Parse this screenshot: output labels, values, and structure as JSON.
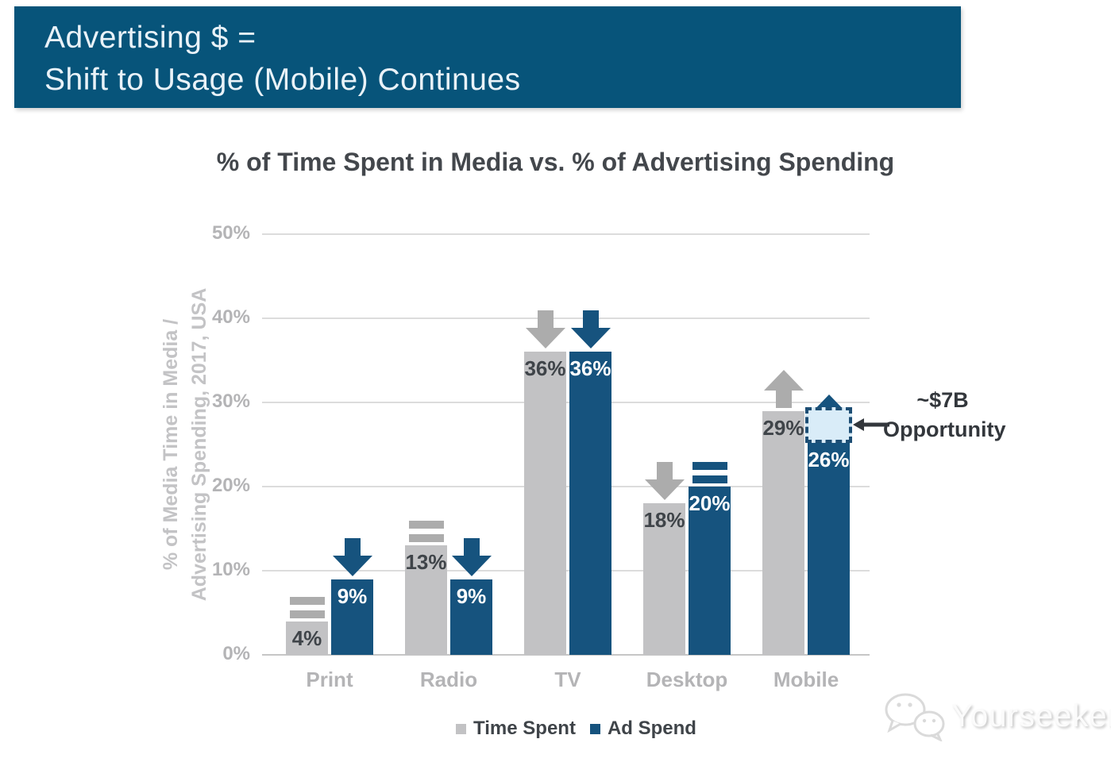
{
  "header": {
    "title_line1": "Advertising $ =",
    "title_line2": "Shift to Usage (Mobile) Continues"
  },
  "chart_data": {
    "type": "bar",
    "title": "% of Time Spent in Media vs. % of Advertising Spending",
    "ylabel": [
      "% of Media Time in Media /",
      "Advertising Spending, 2017, USA"
    ],
    "categories": [
      "Print",
      "Radio",
      "TV",
      "Desktop",
      "Mobile"
    ],
    "series": [
      {
        "name": "Time Spent",
        "color": "#c2c2c4",
        "label_color": "#3f4449",
        "marker_color": "#acacac",
        "values": [
          4,
          13,
          36,
          18,
          29
        ],
        "trend_markers": [
          "equal",
          "equal",
          "down",
          "down",
          "up"
        ]
      },
      {
        "name": "Ad Spend",
        "color": "#16537e",
        "label_color": "#ffffff",
        "marker_color": "#16537e",
        "values": [
          9,
          9,
          36,
          20,
          26
        ],
        "trend_markers": [
          "down",
          "down",
          "down",
          "equal",
          "up"
        ]
      }
    ],
    "ylim": [
      0,
      50
    ],
    "yticks": [
      "0%",
      "10%",
      "20%",
      "30%",
      "40%",
      "50%"
    ],
    "grid": true,
    "legend_position": "bottom",
    "annotation": {
      "line1": "~$7B",
      "line2": "Opportunity",
      "target_category": "Mobile",
      "target_series": "Ad Spend",
      "box_from_pct": 25.2,
      "box_to_pct": 29.4,
      "box_fill": "#d9ecf8",
      "box_border": "#1d4e74",
      "text_color": "#33373c"
    }
  },
  "watermark": {
    "text": "Yourseeker"
  },
  "colors": {
    "banner_bg": "#07547a",
    "banner_text": "#e9f2f8",
    "title_text": "#43474c",
    "axis_text": "#b4b4b6",
    "gridline": "#dcdcdc"
  }
}
